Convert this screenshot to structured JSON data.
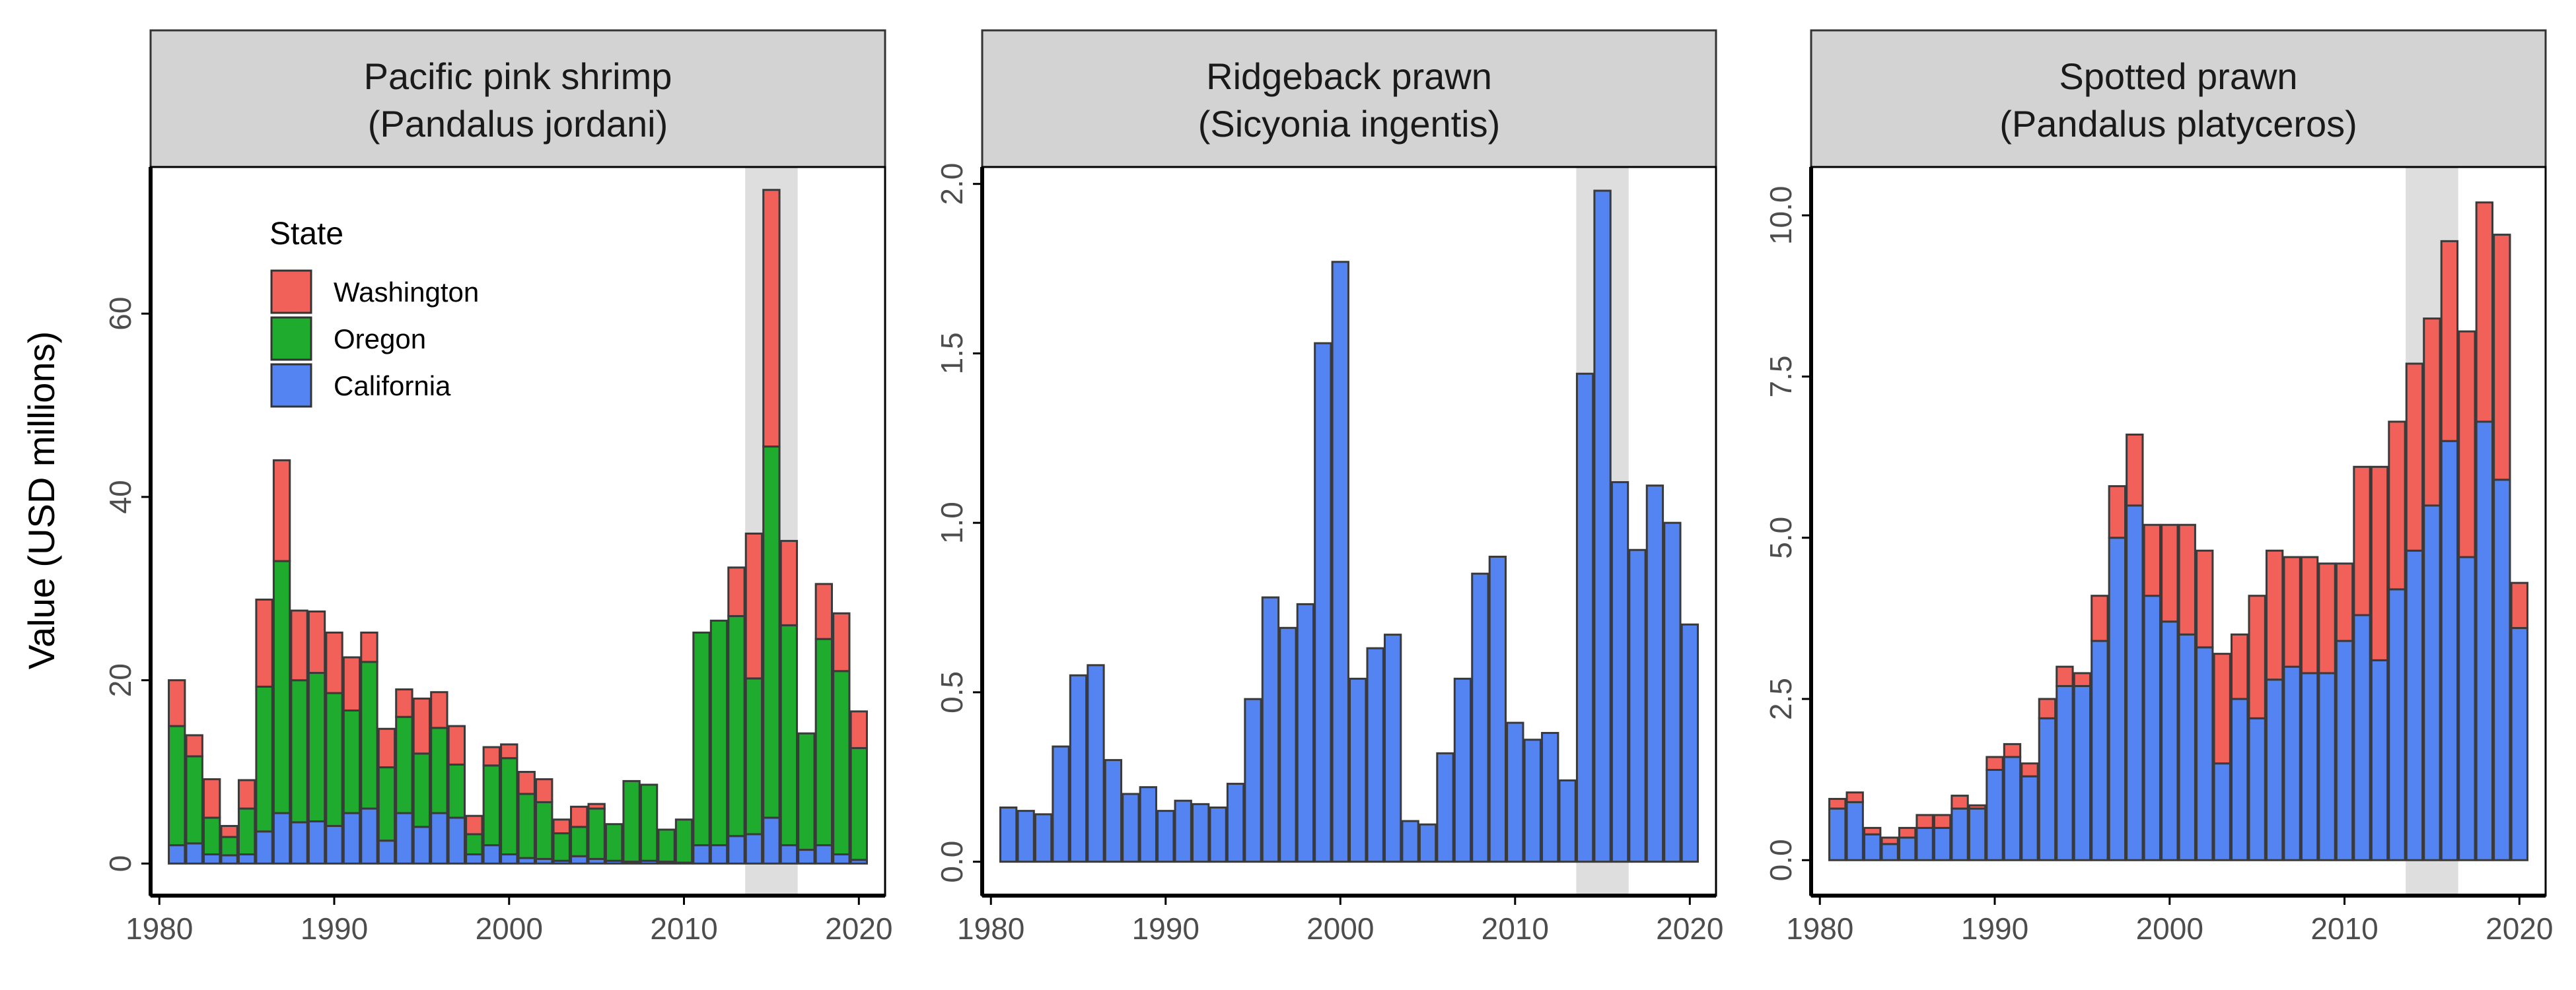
{
  "figure": {
    "ylabel": "Value (USD millions)"
  },
  "legend": {
    "title": "State",
    "entries": [
      {
        "name": "Washington",
        "color": "#F2605A"
      },
      {
        "name": "Oregon",
        "color": "#1EAB2E"
      },
      {
        "name": "California",
        "color": "#5384F2"
      }
    ]
  },
  "colors": {
    "California": "#5384F2",
    "Oregon": "#1EAB2E",
    "Washington": "#F2605A",
    "highlight": "#DEDEDE",
    "strip": "#D3D3D3",
    "bar_outline": "#3A3A3A"
  },
  "chart_data": [
    {
      "type": "bar",
      "stacked": true,
      "title": "Pacific pink shrimp\n(Pandalus jordani)",
      "title_lines": [
        "Pacific pink shrimp",
        "(Pandalus jordani)"
      ],
      "xlim": [
        1979.5,
        2021.5
      ],
      "ylim": [
        -3.5,
        76
      ],
      "x_ticks": [
        1980,
        1990,
        2000,
        2010,
        2020
      ],
      "y_ticks": [
        0,
        20,
        40,
        60
      ],
      "highlight_years": [
        2014,
        2016
      ],
      "x": [
        1981,
        1982,
        1983,
        1984,
        1985,
        1986,
        1987,
        1988,
        1989,
        1990,
        1991,
        1992,
        1993,
        1994,
        1995,
        1996,
        1997,
        1998,
        1999,
        2000,
        2001,
        2002,
        2003,
        2004,
        2005,
        2006,
        2007,
        2008,
        2009,
        2010,
        2011,
        2012,
        2013,
        2014,
        2015,
        2016,
        2017,
        2018,
        2019,
        2020
      ],
      "series": [
        {
          "name": "California",
          "values": [
            2.0,
            2.2,
            1.0,
            0.9,
            1.0,
            3.5,
            5.5,
            4.5,
            4.6,
            4.1,
            5.5,
            6.0,
            2.5,
            5.5,
            4.0,
            5.5,
            5.0,
            1.0,
            2.0,
            1.0,
            0.6,
            0.5,
            0.3,
            0.8,
            0.5,
            0.3,
            0.2,
            0.3,
            0.2,
            0.1,
            2.0,
            2.0,
            3.0,
            3.2,
            5.0,
            2.0,
            1.5,
            2.0,
            1.0,
            0.4
          ]
        },
        {
          "name": "Oregon",
          "values": [
            13.0,
            9.5,
            4.0,
            2.0,
            5.0,
            15.8,
            27.5,
            15.5,
            16.2,
            14.5,
            11.2,
            16.0,
            8.0,
            10.5,
            8.0,
            9.3,
            5.8,
            2.2,
            8.7,
            10.5,
            7.0,
            6.2,
            3.0,
            3.2,
            5.5,
            4.0,
            8.8,
            8.3,
            3.5,
            4.7,
            23.2,
            24.5,
            24.0,
            17.0,
            40.5,
            24.0,
            12.7,
            22.5,
            20.0,
            12.2
          ]
        },
        {
          "name": "Washington",
          "values": [
            5.0,
            2.3,
            4.2,
            1.2,
            3.1,
            9.5,
            11.0,
            7.6,
            6.7,
            6.6,
            5.8,
            3.2,
            4.2,
            3.0,
            6.0,
            3.9,
            4.2,
            2.0,
            2.0,
            1.5,
            2.4,
            2.5,
            1.5,
            2.2,
            0.5,
            0.0,
            0.0,
            0.0,
            0.0,
            0.0,
            0.0,
            0.0,
            5.3,
            15.8,
            28.0,
            9.2,
            0.0,
            6.0,
            6.3,
            4.0
          ]
        }
      ]
    },
    {
      "type": "bar",
      "stacked": true,
      "title": "Ridgeback prawn\n(Sicyonia ingentis)",
      "title_lines": [
        "Ridgeback prawn",
        "(Sicyonia ingentis)"
      ],
      "xlim": [
        1979.5,
        2021.5
      ],
      "ylim": [
        -0.1,
        2.05
      ],
      "x_ticks": [
        1980,
        1990,
        2000,
        2010,
        2020
      ],
      "y_ticks": [
        0.0,
        0.5,
        1.0,
        1.5,
        2.0
      ],
      "y_tick_labels": [
        "0.0",
        "0.5",
        "1.0",
        "1.5",
        "2.0"
      ],
      "highlight_years": [
        2014,
        2016
      ],
      "x": [
        1981,
        1982,
        1983,
        1984,
        1985,
        1986,
        1987,
        1988,
        1989,
        1990,
        1991,
        1992,
        1993,
        1994,
        1995,
        1996,
        1997,
        1998,
        1999,
        2000,
        2001,
        2002,
        2003,
        2004,
        2005,
        2006,
        2007,
        2008,
        2009,
        2010,
        2011,
        2012,
        2013,
        2014,
        2015,
        2016,
        2017,
        2018,
        2019,
        2020
      ],
      "series": [
        {
          "name": "California",
          "values": [
            0.16,
            0.15,
            0.14,
            0.34,
            0.55,
            0.58,
            0.3,
            0.2,
            0.22,
            0.15,
            0.18,
            0.17,
            0.16,
            0.23,
            0.48,
            0.78,
            0.69,
            0.76,
            1.53,
            1.77,
            0.54,
            0.63,
            0.67,
            0.12,
            0.11,
            0.32,
            0.54,
            0.85,
            0.9,
            0.41,
            0.36,
            0.38,
            0.24,
            1.44,
            1.98,
            1.12,
            0.92,
            1.11,
            1.0,
            0.7
          ]
        }
      ]
    },
    {
      "type": "bar",
      "stacked": true,
      "title": "Spotted prawn\n(Pandalus platyceros)",
      "title_lines": [
        "Spotted prawn",
        "(Pandalus platyceros)"
      ],
      "xlim": [
        1979.5,
        2021.5
      ],
      "ylim": [
        -0.55,
        10.75
      ],
      "x_ticks": [
        1980,
        1990,
        2000,
        2010,
        2020
      ],
      "y_ticks": [
        0.0,
        2.5,
        5.0,
        7.5,
        10.0
      ],
      "y_tick_labels": [
        "0.0",
        "2.5",
        "5.0",
        "7.5",
        "10.0"
      ],
      "highlight_years": [
        2014,
        2016
      ],
      "x": [
        1981,
        1982,
        1983,
        1984,
        1985,
        1986,
        1987,
        1988,
        1989,
        1990,
        1991,
        1992,
        1993,
        1994,
        1995,
        1996,
        1997,
        1998,
        1999,
        2000,
        2001,
        2002,
        2003,
        2004,
        2005,
        2006,
        2007,
        2008,
        2009,
        2010,
        2011,
        2012,
        2013,
        2014,
        2015,
        2016,
        2017,
        2018,
        2019,
        2020
      ],
      "series": [
        {
          "name": "California",
          "values": [
            0.8,
            0.9,
            0.4,
            0.25,
            0.35,
            0.5,
            0.5,
            0.8,
            0.8,
            1.4,
            1.6,
            1.3,
            2.2,
            2.7,
            2.7,
            3.4,
            5.0,
            5.5,
            4.1,
            3.7,
            3.5,
            3.3,
            1.5,
            2.5,
            2.2,
            2.8,
            3.0,
            2.9,
            2.9,
            3.4,
            3.8,
            3.1,
            4.2,
            4.8,
            5.5,
            6.5,
            4.7,
            6.8,
            5.9,
            3.6
          ]
        },
        {
          "name": "Washington",
          "values": [
            0.15,
            0.15,
            0.1,
            0.1,
            0.15,
            0.2,
            0.2,
            0.2,
            0.05,
            0.2,
            0.2,
            0.2,
            0.3,
            0.3,
            0.2,
            0.7,
            0.8,
            1.1,
            1.1,
            1.5,
            1.7,
            1.5,
            1.7,
            1.0,
            1.9,
            2.0,
            1.7,
            1.8,
            1.7,
            1.2,
            2.3,
            3.0,
            2.6,
            2.9,
            2.9,
            3.1,
            3.5,
            3.4,
            3.8,
            0.7
          ]
        }
      ]
    }
  ]
}
